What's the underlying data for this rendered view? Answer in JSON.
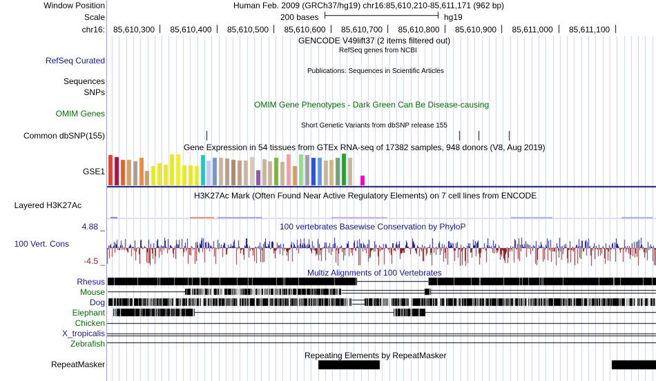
{
  "header": {
    "window_position_label": "Window Position",
    "window_position_value": "Human Feb. 2009 (GRCh37/hg19)   chr16:85,610,210-85,611,171 (962 bp)",
    "scale_label": "Scale",
    "scale_value": "200 bases",
    "scale_assembly": "hg19",
    "ruler_label": "chr16:",
    "ruler_ticks": [
      "85,610,300",
      "85,610,400",
      "85,610,500",
      "85,610,600",
      "85,610,700",
      "85,610,800",
      "85,610,900",
      "85,611,000",
      "85,611,100"
    ]
  },
  "tracks": {
    "gencode_title": "GENCODE V49lift37 (2 items filtered out)",
    "refseq_title": "RefSeq genes from NCBI",
    "refseq_label": "RefSeq Curated",
    "publications_title": "Publications: Sequences in Scientific Articles",
    "sequences_label": "Sequences",
    "snps_label": "SNPs",
    "omim_title": "OMIM Gene Phenotypes - Dark Green Can Be Disease-causing",
    "omim_label": "OMIM Genes",
    "dbsnp_title": "Short Genetic Variants from dbSNP release 155",
    "dbsnp_label": "Common dbSNP(155)",
    "gtex_title": "Gene Expression in 54 tissues from GTEx RNA-seq of 17382 samples, 948 donors (V8, Aug 2019)",
    "gtex_label": "GSE1",
    "h3k27ac_title": "H3K27Ac Mark (Often Found Near Active Regulatory Elements) on 7 cell lines from ENCODE",
    "h3k27ac_label": "Layered H3K27Ac",
    "phylop_title": "100 vertebrates Basewise Conservation by PhyloP",
    "phylop_label": "100 Vert. Cons",
    "phylop_max": "4.88 _",
    "phylop_min": "-4.5 _",
    "multiz_title": "Multiz Alignments of 100 Vertebrates",
    "species": [
      "Rhesus",
      "Mouse",
      "Dog",
      "Elephant",
      "Chicken",
      "X_tropicalis",
      "Zebrafish"
    ],
    "repeat_title": "Repeating Elements by RepeatMasker",
    "repeat_label": "RepeatMasker"
  },
  "colors": {
    "label_blue": "#16168a",
    "label_green": "#007000",
    "phylop_pos": "#1c1c8c",
    "phylop_neg": "#8c2424",
    "gtex": [
      "#e8402c",
      "#a3144c",
      "#e06424",
      "#d2a064",
      "#a0a0a0",
      "#ee8a40",
      "#c8a078",
      "#e8e82a",
      "#e8e82a",
      "#e8e82a",
      "#e8e82a",
      "#f0f020",
      "#e8e82a",
      "#e8e82a",
      "#e8e82a",
      "#1ec8c8",
      "#c8c8f0",
      "#7896c8",
      "#c8b4a0",
      "#b4a08c",
      "#aa8a6e",
      "#be9e86",
      "#c8b4a0",
      "#d8c8b8",
      "#8c5aa0",
      "#c8b49c",
      "#c8b49c",
      "#7ab43c",
      "#c8b49c",
      "#f0a0a0",
      "#d2a064",
      "#96dc8c",
      "#a0a0a0",
      "#2850d8",
      "#6496e6",
      "#c8b49c",
      "#d2b48c",
      "#78a078",
      "#28a028",
      "#c8b49c",
      "#e0e0e0",
      "#f000c8"
    ],
    "gtex_heights": [
      0.95,
      0.9,
      0.8,
      0.8,
      0.75,
      0.88,
      0.45,
      0.6,
      0.7,
      0.65,
      0.98,
      0.98,
      0.62,
      0.62,
      0.6,
      0.95,
      0.78,
      0.88,
      0.88,
      0.85,
      0.8,
      0.78,
      0.78,
      0.9,
      0.48,
      0.83,
      0.76,
      0.88,
      0.74,
      0.98,
      0.6,
      0.98,
      0.95,
      0.88,
      0.88,
      0.78,
      0.8,
      0.88,
      1.0,
      0.88,
      0.0,
      0.3
    ]
  }
}
